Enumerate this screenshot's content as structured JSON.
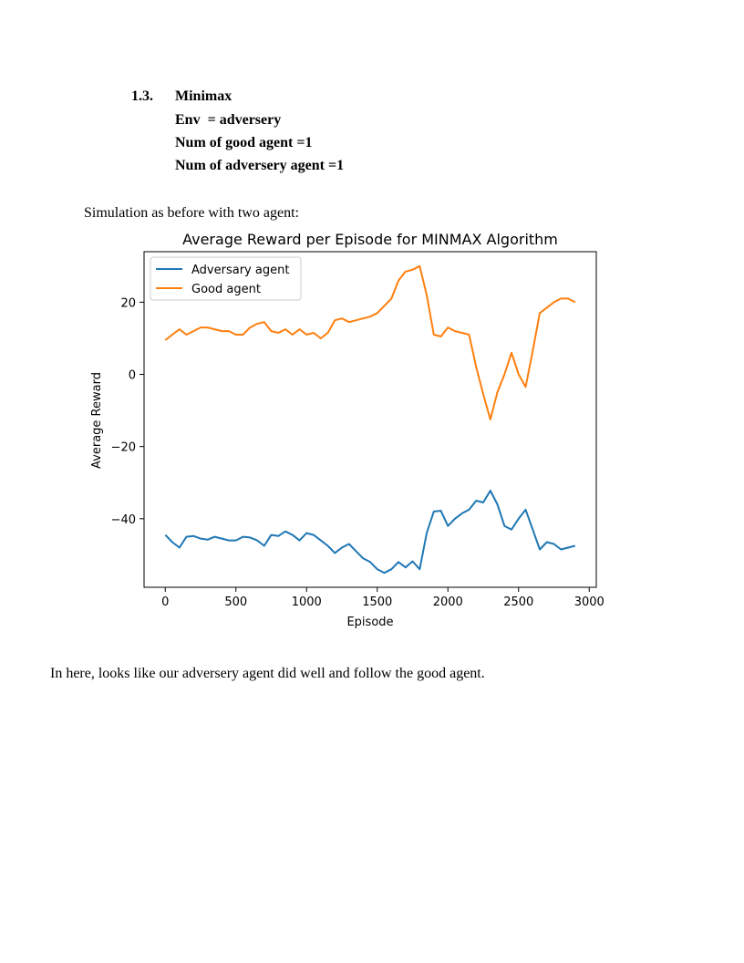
{
  "section": {
    "number": "1.3.",
    "title": "Minimax",
    "lines": [
      "Env  = adversery",
      "Num of good agent =1",
      "Num of adversery agent =1"
    ]
  },
  "intro_text": "Simulation as before with two agent:",
  "closing_text": "In here, looks like our adversery agent did well and follow the good agent.",
  "chart_data": {
    "type": "line",
    "title": "Average Reward per Episode for MINMAX Algorithm",
    "xlabel": "Episode",
    "ylabel": "Average Reward",
    "xlim": [
      -150,
      3050
    ],
    "ylim": [
      -59,
      34
    ],
    "xticks": [
      0,
      500,
      1000,
      1500,
      2000,
      2500,
      3000
    ],
    "yticks": [
      -40,
      -20,
      0,
      20
    ],
    "grid": false,
    "legend_position": "top-left",
    "series": [
      {
        "name": "Adversary agent",
        "color": "#1f77b4",
        "x": [
          0,
          50,
          100,
          150,
          200,
          250,
          300,
          350,
          400,
          450,
          500,
          550,
          600,
          650,
          700,
          750,
          800,
          850,
          900,
          950,
          1000,
          1050,
          1100,
          1150,
          1200,
          1250,
          1300,
          1350,
          1400,
          1450,
          1500,
          1550,
          1600,
          1650,
          1700,
          1750,
          1800,
          1850,
          1900,
          1950,
          2000,
          2050,
          2100,
          2150,
          2200,
          2250,
          2300,
          2350,
          2400,
          2450,
          2500,
          2550,
          2600,
          2650,
          2700,
          2750,
          2800,
          2850,
          2900
        ],
        "y": [
          -44.5,
          -46.5,
          -48,
          -45,
          -44.8,
          -45.5,
          -45.8,
          -45,
          -45.5,
          -46,
          -46,
          -45,
          -45.2,
          -46,
          -47.5,
          -44.5,
          -44.8,
          -43.5,
          -44.5,
          -46,
          -44,
          -44.5,
          -46,
          -47.5,
          -49.5,
          -48,
          -47,
          -49,
          -51,
          -52,
          -54,
          -55,
          -54,
          -52,
          -53.5,
          -51.8,
          -54,
          -44,
          -38,
          -37.8,
          -42,
          -40,
          -38.5,
          -37.5,
          -35,
          -35.5,
          -32.2,
          -36,
          -42,
          -43,
          -40,
          -37.5,
          -43,
          -48.5,
          -46.5,
          -47,
          -48.5,
          -48,
          -47.5
        ]
      },
      {
        "name": "Good agent",
        "color": "#ff7f0e",
        "x": [
          0,
          50,
          100,
          150,
          200,
          250,
          300,
          350,
          400,
          450,
          500,
          550,
          600,
          650,
          700,
          750,
          800,
          850,
          900,
          950,
          1000,
          1050,
          1100,
          1150,
          1200,
          1250,
          1300,
          1350,
          1400,
          1450,
          1500,
          1550,
          1600,
          1650,
          1700,
          1750,
          1800,
          1850,
          1900,
          1950,
          2000,
          2050,
          2100,
          2150,
          2200,
          2250,
          2300,
          2350,
          2400,
          2450,
          2500,
          2550,
          2600,
          2650,
          2700,
          2750,
          2800,
          2850,
          2900
        ],
        "y": [
          9.5,
          11,
          12.5,
          11,
          12,
          13,
          13,
          12.5,
          12,
          12,
          11,
          11,
          13,
          14,
          14.5,
          12,
          11.5,
          12.5,
          11,
          12.5,
          11,
          11.5,
          10,
          11.5,
          15,
          15.5,
          14.5,
          15,
          15.5,
          16,
          17,
          19,
          21,
          26,
          28.5,
          29,
          30,
          22,
          11,
          10.5,
          13,
          12,
          11.5,
          11,
          2,
          -5.5,
          -12.5,
          -5,
          0,
          6,
          0,
          -3.5,
          6.5,
          17,
          18.5,
          20,
          21,
          21,
          20
        ]
      }
    ]
  }
}
